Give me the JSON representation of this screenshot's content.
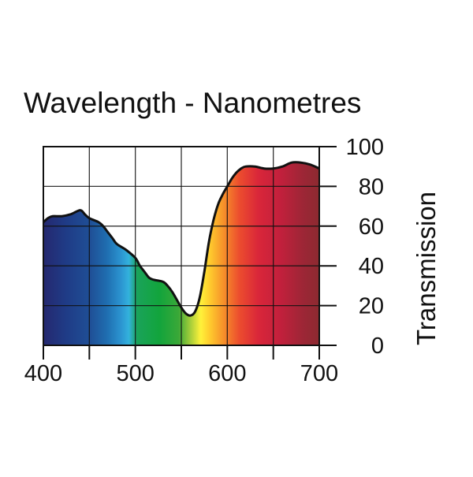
{
  "chart_data": {
    "type": "area",
    "title": "Wavelength - Nanometres",
    "xlabel": "Wavelength - Nanometres",
    "ylabel": "Transmission",
    "xlim": [
      400,
      700
    ],
    "ylim": [
      0,
      100
    ],
    "x_ticks": [
      400,
      500,
      600,
      700
    ],
    "y_ticks": [
      0,
      20,
      40,
      60,
      80,
      100
    ],
    "grid": true,
    "fill": "visible-spectrum colour gradient",
    "series": [
      {
        "name": "Transmission",
        "points": [
          [
            400,
            62
          ],
          [
            405,
            64
          ],
          [
            410,
            65
          ],
          [
            420,
            65
          ],
          [
            430,
            66
          ],
          [
            440,
            68
          ],
          [
            445,
            66
          ],
          [
            450,
            64
          ],
          [
            460,
            62
          ],
          [
            465,
            60
          ],
          [
            470,
            57
          ],
          [
            475,
            54
          ],
          [
            480,
            51
          ],
          [
            490,
            48
          ],
          [
            500,
            44
          ],
          [
            505,
            40
          ],
          [
            510,
            37
          ],
          [
            515,
            34
          ],
          [
            520,
            33
          ],
          [
            530,
            32
          ],
          [
            535,
            30
          ],
          [
            540,
            27
          ],
          [
            545,
            23
          ],
          [
            550,
            19
          ],
          [
            555,
            16
          ],
          [
            560,
            15
          ],
          [
            565,
            17
          ],
          [
            570,
            24
          ],
          [
            575,
            37
          ],
          [
            580,
            52
          ],
          [
            585,
            63
          ],
          [
            590,
            71
          ],
          [
            595,
            76
          ],
          [
            600,
            80
          ],
          [
            605,
            84
          ],
          [
            610,
            87
          ],
          [
            615,
            89
          ],
          [
            620,
            90
          ],
          [
            630,
            90
          ],
          [
            640,
            89
          ],
          [
            650,
            89
          ],
          [
            660,
            90
          ],
          [
            670,
            92
          ],
          [
            680,
            92
          ],
          [
            690,
            91
          ],
          [
            700,
            89
          ]
        ]
      }
    ]
  }
}
